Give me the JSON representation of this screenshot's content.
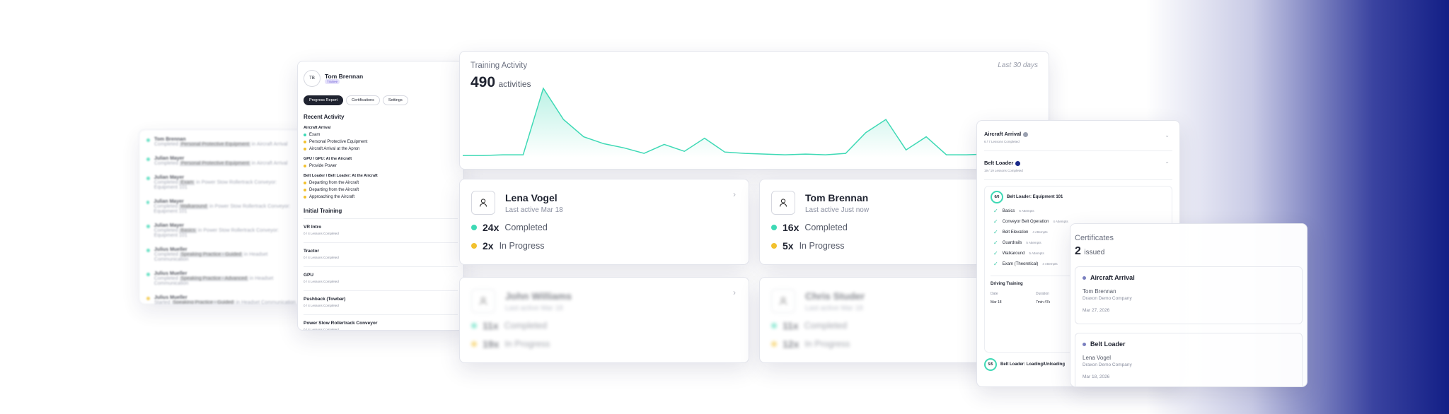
{
  "activity_feed": [
    {
      "name": "Tom Brennan",
      "action": "Completed",
      "item": "Personal Protective Equipment",
      "context": "in Aircraft Arrival",
      "status": "done"
    },
    {
      "name": "Julian Mayer",
      "action": "Completed",
      "item": "Personal Protective Equipment",
      "context": "in Aircraft Arrival",
      "status": "done"
    },
    {
      "name": "Julian Mayer",
      "action": "Completed",
      "item": "Exam",
      "context": "in Power Stow Rollertrack Conveyor: Equipment 101",
      "status": "done"
    },
    {
      "name": "Julian Mayer",
      "action": "Completed",
      "item": "Walkaround",
      "context": "in Power Stow Rollertrack Conveyor: Equipment 101",
      "status": "done"
    },
    {
      "name": "Julian Mayer",
      "action": "Completed",
      "item": "Basics",
      "context": "in Power Stow Rollertrack Conveyor: Equipment 101",
      "status": "done"
    },
    {
      "name": "Julius Mueller",
      "action": "Completed",
      "item": "Speaking Practice - Guided",
      "context": "in Headset Communication",
      "status": "done"
    },
    {
      "name": "Julius Mueller",
      "action": "Completed",
      "item": "Speaking Practice - Advanced",
      "context": "in Headset Communication",
      "status": "done"
    },
    {
      "name": "Julius Mueller",
      "action": "Started",
      "item": "Speaking Practice - Guided",
      "context": "in Headset Communication",
      "status": "progress"
    }
  ],
  "profile": {
    "initials": "TB",
    "name": "Tom Brennan",
    "role": "Trainee",
    "tabs": [
      "Progress Report",
      "Certifications",
      "Settings"
    ],
    "recent_title": "Recent Activity",
    "recent_groups": [
      {
        "title": "Aircraft Arrival",
        "items": [
          "Exam",
          "Personal Protective Equipment",
          "Aircraft Arrival at the Apron"
        ]
      },
      {
        "title": "GPU / GPU: At the Aircraft",
        "items": [
          "Provide Power"
        ]
      },
      {
        "title": "Belt Loader / Belt Loader: At the Aircraft",
        "items": [
          "Departing from the Aircraft",
          "Departing from the Aircraft",
          "Approaching the Aircraft"
        ]
      }
    ],
    "initial_title": "Initial Training",
    "modules": [
      {
        "name": "VR Intro",
        "progress": "0 / 4 Lessons Completed"
      },
      {
        "name": "Tractor",
        "progress": "0 / 4 Lessons Completed"
      },
      {
        "name": "GPU",
        "progress": "0 / 4 Lessons Completed"
      },
      {
        "name": "Pushback (Towbar)",
        "progress": "0 / 4 Lessons Completed"
      },
      {
        "name": "Power Stow Rollertrack Conveyor",
        "progress": "0 / 4 Lessons Completed"
      }
    ]
  },
  "training_activity": {
    "title": "Training Activity",
    "total": "490",
    "unit": "activities",
    "period": "Last 30 days",
    "daily_counts": [
      3,
      3,
      4,
      4,
      100,
      55,
      30,
      20,
      14,
      6,
      19,
      9,
      28,
      8,
      6,
      5,
      4,
      5,
      4,
      6,
      36,
      55,
      11,
      30,
      4,
      4,
      5,
      4,
      3,
      5
    ]
  },
  "trainees": [
    {
      "name": "Lena Vogel",
      "last_active": "Last active Mar 18",
      "completed": "24x",
      "completed_label": "Completed",
      "in_progress": "2x",
      "in_progress_label": "In Progress"
    },
    {
      "name": "Tom Brennan",
      "last_active": "Last active Just now",
      "completed": "16x",
      "completed_label": "Completed",
      "in_progress": "5x",
      "in_progress_label": "In Progress"
    },
    {
      "name": "John Williams",
      "last_active": "Last active Mar 18",
      "completed": "11x",
      "completed_label": "Completed",
      "in_progress": "19x",
      "in_progress_label": "In Progress"
    },
    {
      "name": "Chris Studer",
      "last_active": "Last active Mar 18",
      "completed": "11x",
      "completed_label": "Completed",
      "in_progress": "12x",
      "in_progress_label": "In Progress"
    }
  ],
  "course_panel": {
    "courses": [
      {
        "name": "Aircraft Arrival",
        "progress": "6 / 7 Lessons Completed"
      },
      {
        "name": "Belt Loader",
        "progress": "19 / 19 Lessons Completed"
      }
    ],
    "module": {
      "ring": "6/6",
      "name": "Belt Loader: Equipment 101"
    },
    "lessons": [
      {
        "name": "Basics",
        "attempts": "5 Attempts"
      },
      {
        "name": "Conveyor Belt Operation",
        "attempts": "4 Attempts"
      },
      {
        "name": "Belt Elevation",
        "attempts": "4 Attempts"
      },
      {
        "name": "Guardrails",
        "attempts": "5 Attempts"
      },
      {
        "name": "Walkaround",
        "attempts": "5 Attempts"
      },
      {
        "name": "Exam (Theoretical)",
        "attempts": "4 Attempts"
      }
    ],
    "driving": {
      "title": "Driving Training",
      "headers": [
        "Date",
        "Duration"
      ],
      "row": [
        "Mar 18",
        "7min 47s"
      ]
    },
    "next_module": {
      "ring": "5/5",
      "name": "Belt Loader: Loading/Unloading"
    }
  },
  "certificates": {
    "title": "Certificates",
    "count": "2",
    "unit": "issued",
    "items": [
      {
        "course": "Aircraft Arrival",
        "person": "Tom Brennan",
        "company": "Draxon Demo Company",
        "date": "Mar 27, 2026"
      },
      {
        "course": "Belt Loader",
        "person": "Lena Vogel",
        "company": "Draxon Demo Company",
        "date": "Mar 18, 2026"
      }
    ]
  }
}
